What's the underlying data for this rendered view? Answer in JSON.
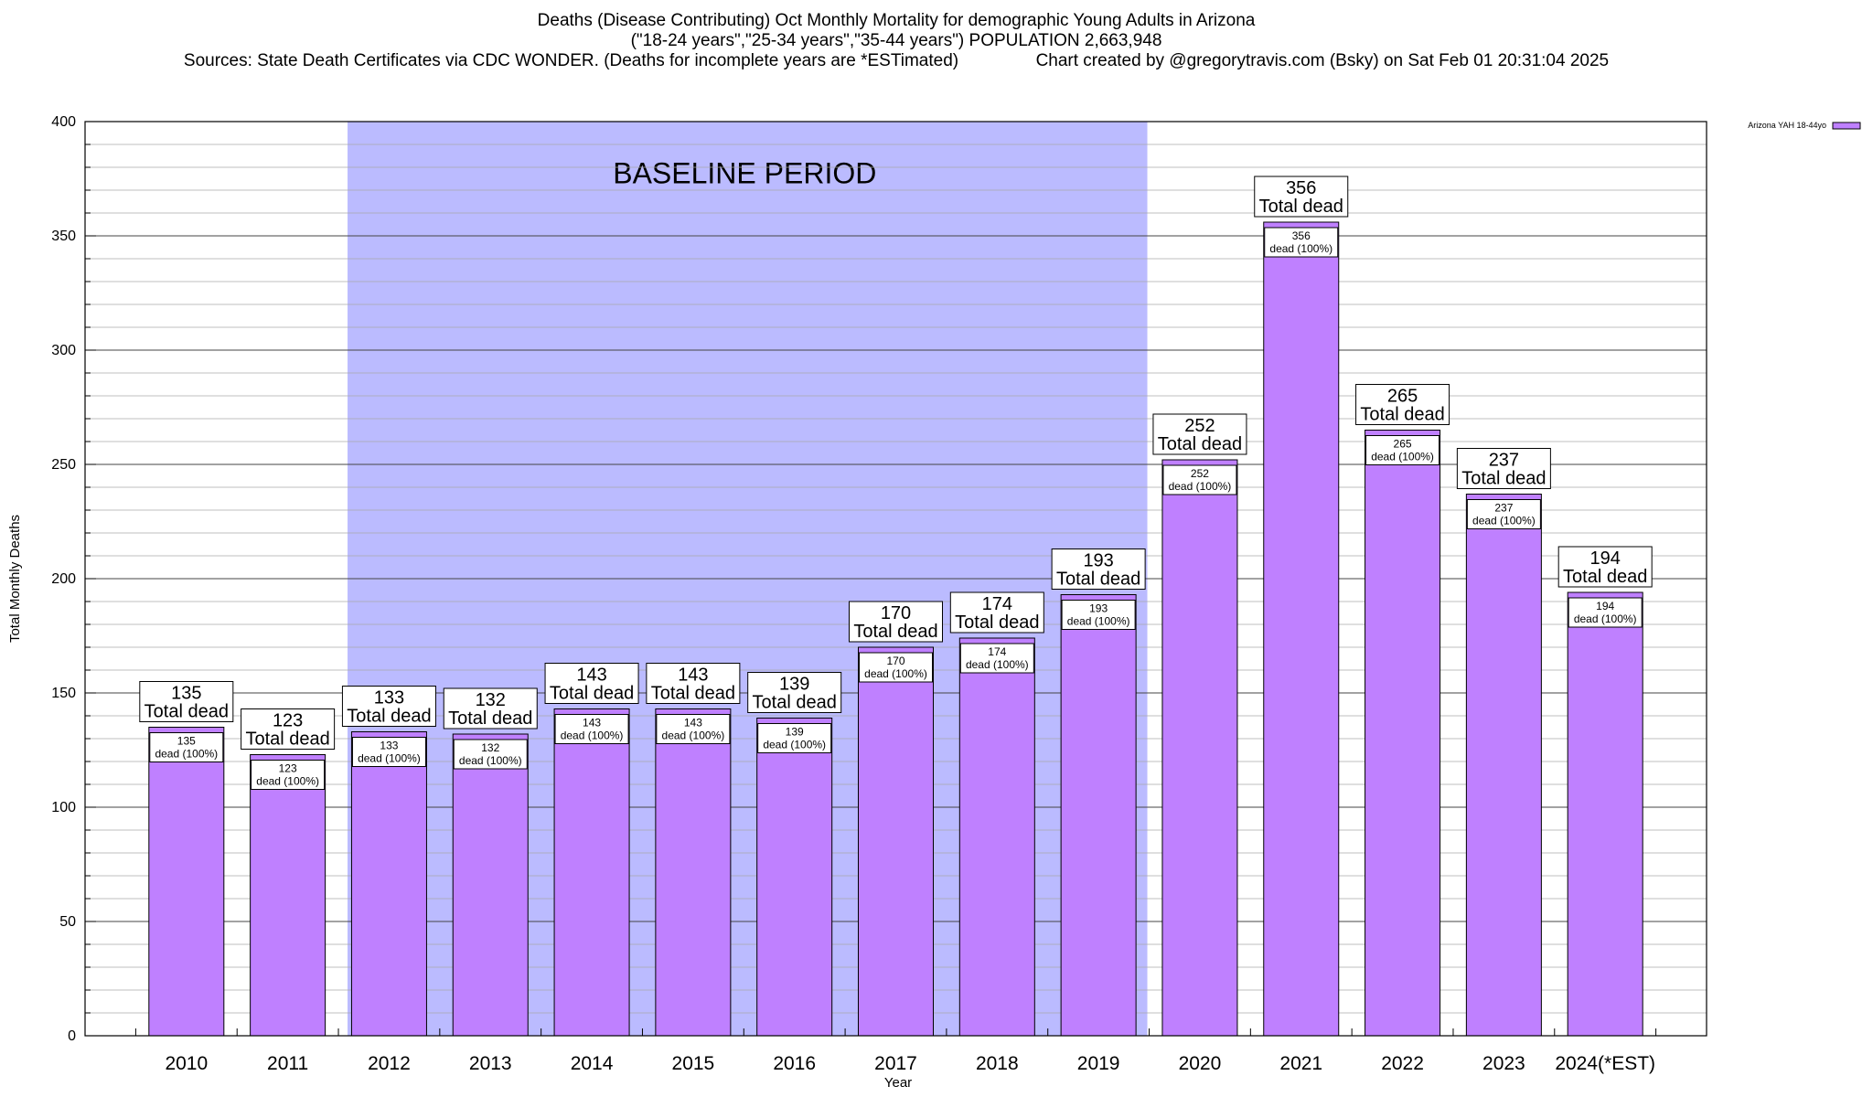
{
  "title": {
    "line1": "Deaths (Disease Contributing) Oct Monthly Mortality for demographic Young Adults in Arizona",
    "line2": "(\"18-24 years\",\"25-34 years\",\"35-44 years\") POPULATION 2,663,948",
    "line3_left": "Sources: State Death Certificates via CDC WONDER. (Deaths for incomplete years are *ESTimated)",
    "line3_right": "Chart created by @gregorytravis.com (Bsky) on Sat Feb 01 20:31:04 2025"
  },
  "chart_data": {
    "type": "bar",
    "xlabel": "Year",
    "ylabel": "Total Monthly Deaths",
    "ylim": [
      0,
      400
    ],
    "yticks": [
      0,
      50,
      100,
      150,
      200,
      250,
      300,
      350,
      400
    ],
    "categories": [
      "2010",
      "2011",
      "2012",
      "2013",
      "2014",
      "2015",
      "2016",
      "2017",
      "2018",
      "2019",
      "2020",
      "2021",
      "2022",
      "2023",
      "2024(*EST)"
    ],
    "series": [
      {
        "name": "Arizona YAH 18-44yo",
        "color": "#bf80ff",
        "values": [
          135,
          123,
          133,
          132,
          143,
          143,
          139,
          170,
          174,
          193,
          252,
          356,
          265,
          237,
          194
        ]
      }
    ],
    "bar_labels": {
      "total_line": "Total dead",
      "segment_line": "dead (100%)"
    },
    "baseline_period": {
      "label": "BASELINE PERIOD",
      "from_category": "2012",
      "to_category": "2019",
      "color": "#bbbbff"
    },
    "legend_position": "top-right",
    "grid": true
  }
}
